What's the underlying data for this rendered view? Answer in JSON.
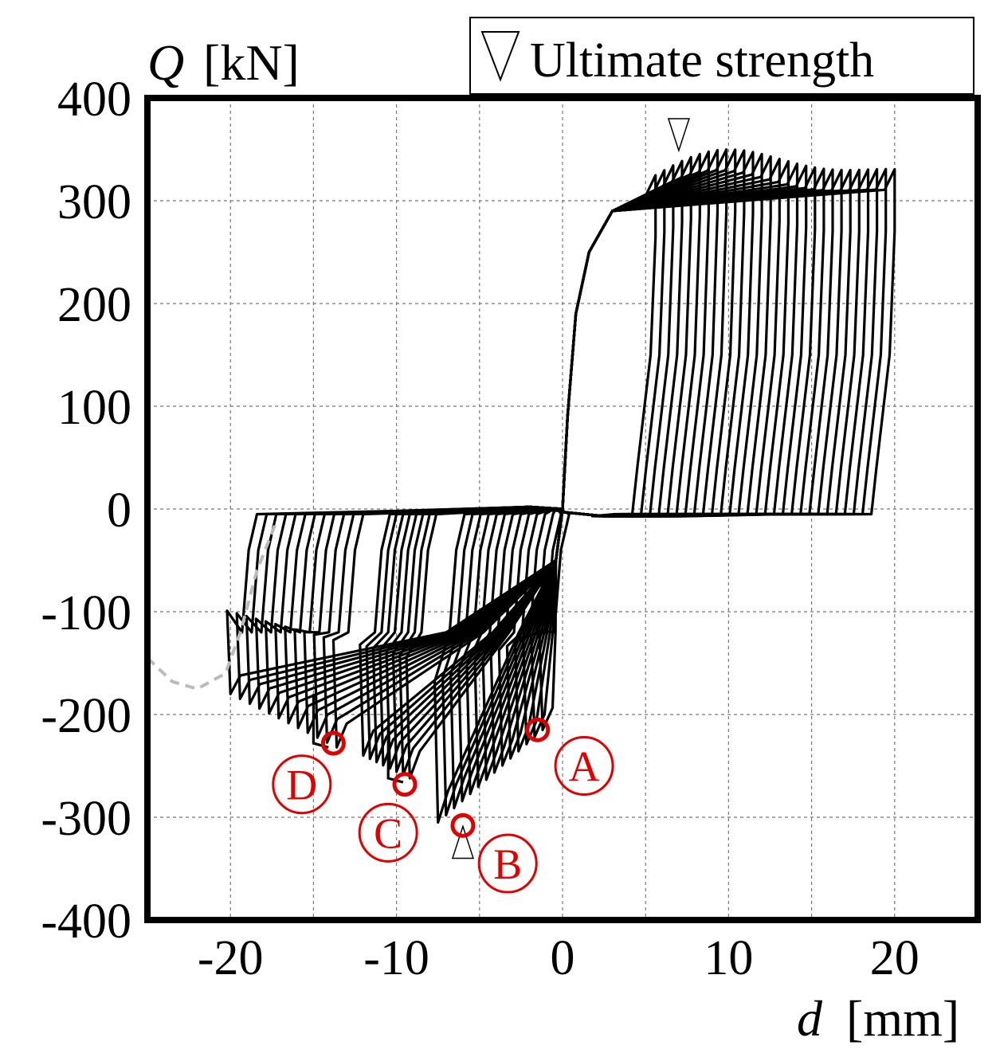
{
  "chart_data": {
    "type": "line",
    "title": "",
    "xlabel": {
      "var": "d",
      "unit": "[mm]"
    },
    "ylabel": {
      "var": "Q",
      "unit": "[kN]"
    },
    "xlim": [
      -25,
      25
    ],
    "ylim": [
      -400,
      400
    ],
    "x_ticks": [
      -20,
      -10,
      0,
      10,
      20
    ],
    "x_tick_labels": [
      "-20",
      "-10",
      "0",
      "10",
      "20"
    ],
    "y_ticks": [
      400,
      300,
      200,
      100,
      0,
      -100,
      -200,
      -300,
      -400
    ],
    "y_tick_labels": [
      "400",
      "300",
      "200",
      "100",
      "0",
      "-100",
      "-200",
      "-300",
      "-400"
    ],
    "x_minor_grid": [
      -25,
      -20,
      -15,
      -10,
      -5,
      0,
      5,
      10,
      15,
      20,
      25
    ],
    "grid": true,
    "legend": {
      "position": "top-right",
      "entries": [
        {
          "symbol": "triangle-down",
          "label": "Ultimate strength"
        }
      ]
    },
    "ultimate_strength": [
      {
        "d": 7,
        "Q": 345,
        "symbol": "down"
      },
      {
        "d": -6,
        "Q": -305,
        "symbol": "up"
      }
    ],
    "marked_points": [
      {
        "label": "A",
        "d": -1.5,
        "Q": -215,
        "label_d": 1.3,
        "label_Q": -250
      },
      {
        "label": "B",
        "d": -6,
        "Q": -308,
        "label_d": -3.3,
        "label_Q": -345
      },
      {
        "label": "C",
        "d": -9.5,
        "Q": -268,
        "label_d": -10.5,
        "label_Q": -315
      },
      {
        "label": "D",
        "d": -13.8,
        "Q": -228,
        "label_d": -15.7,
        "label_Q": -268
      }
    ],
    "series": [
      {
        "color": "#000000",
        "positive_loops": {
          "start_d": 5.6,
          "end_d": 20,
          "count": 28,
          "peak_Q_min": 300,
          "peak_Q_max": 345,
          "unload_Q": -5
        },
        "negative_groups": [
          {
            "start_d": -1.2,
            "end_d": -7.5,
            "count": 14,
            "peak_Q_min": -215,
            "peak_Q_max": -305
          },
          {
            "start_d": -9.2,
            "end_d": -12,
            "count": 8,
            "peak_Q_min": -262,
            "peak_Q_max": -240
          },
          {
            "start_d": -13.6,
            "end_d": -20,
            "count": 12,
            "peak_Q_min": -232,
            "peak_Q_max": -180
          }
        ],
        "drops": [
          {
            "d": -10.5,
            "Q_from": -210,
            "Q_to": -262
          },
          {
            "d": -15,
            "Q_from": -180,
            "Q_to": -228
          }
        ]
      },
      {
        "color": "#bbbbbb",
        "style": "dashed",
        "points": [
          [
            -25,
            -145
          ],
          [
            -23.5,
            -168
          ],
          [
            -22,
            -175
          ],
          [
            -20.3,
            -160
          ],
          [
            -19.4,
            -120
          ],
          [
            -18.4,
            -60
          ],
          [
            -17.3,
            -15
          ]
        ]
      }
    ]
  }
}
